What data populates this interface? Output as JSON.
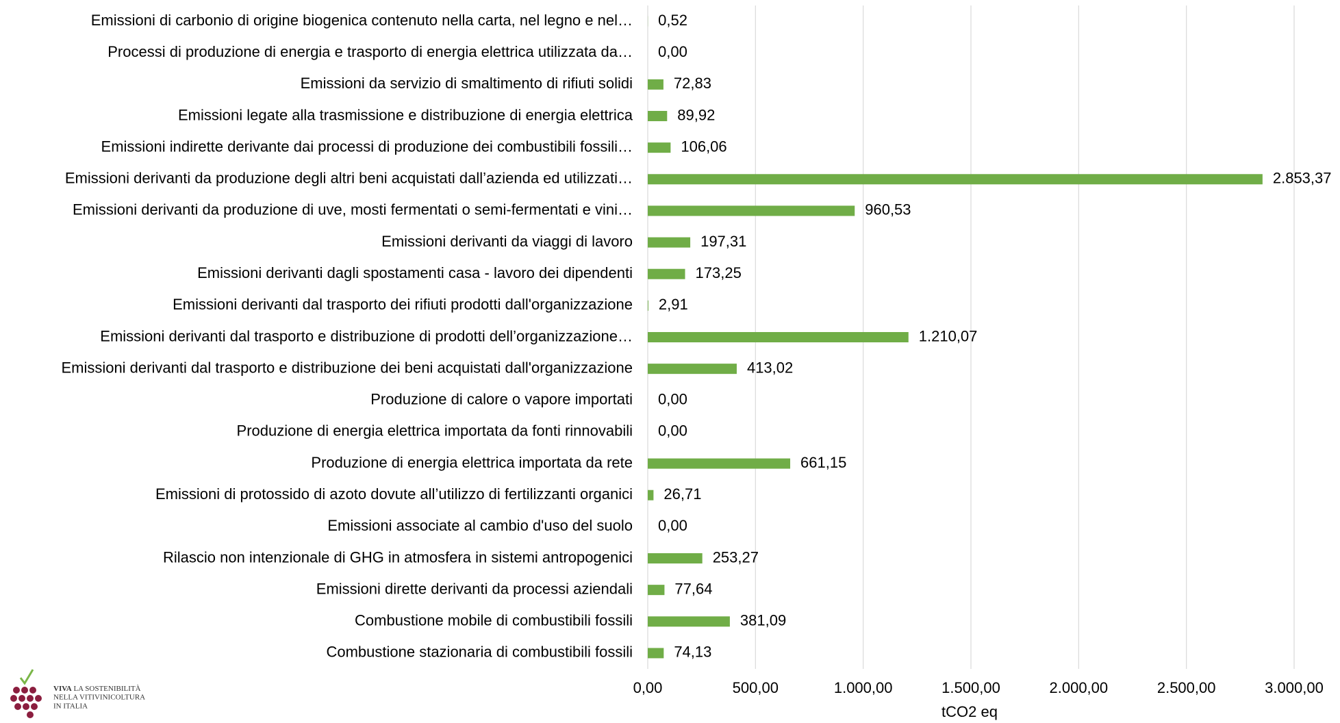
{
  "chart_data": {
    "type": "barh",
    "xlabel": "tCO2 eq",
    "color": "#70ad47",
    "grid": true,
    "categories": [
      "Emissioni di carbonio di origine biogenica contenuto nella carta, nel legno  e nel…",
      "Processi di produzione di energia e trasporto di energia elettrica utilizzata da…",
      "Emissioni da servizio di smaltimento di rifiuti solidi",
      "Emissioni legate alla trasmissione e distribuzione  di energia elettrica",
      "Emissioni indirette derivante dai processi di produzione dei combustibili fossili…",
      "Emissioni derivanti da produzione degli altri beni acquistati dall’azienda ed utilizzati…",
      "Emissioni derivanti da produzione di uve, mosti fermentati o semi-fermentati e vini…",
      "Emissioni derivanti da viaggi di lavoro",
      "Emissioni derivanti dagli spostamenti casa - lavoro dei dipendenti",
      "Emissioni derivanti dal trasporto dei rifiuti prodotti dall'organizzazione",
      "Emissioni derivanti dal trasporto e distribuzione di prodotti dell’organizzazione…",
      "Emissioni derivanti dal trasporto e distribuzione dei beni acquistati dall'organizzazione",
      "Produzione di calore o vapore importati",
      "Produzione di energia elettrica importata da fonti rinnovabili",
      "Produzione di energia elettrica importata da rete",
      "Emissioni di protossido di azoto dovute all’utilizzo di fertilizzanti organici",
      "Emissioni associate al cambio d'uso del suolo",
      "Rilascio non intenzionale di GHG in atmosfera in sistemi antropogenici",
      "Emissioni dirette derivanti da processi aziendali",
      "Combustione mobile di combustibili fossili",
      "Combustione stazionaria di combustibili fossili"
    ],
    "values": [
      0.52,
      0,
      72.83,
      89.92,
      106.06,
      2853.37,
      960.53,
      197.31,
      173.25,
      2.91,
      1210.07,
      413.02,
      0,
      0,
      661.15,
      26.71,
      0,
      253.27,
      77.64,
      381.09,
      74.13
    ],
    "value_labels": [
      "0,52",
      "0,00",
      "72,83",
      "89,92",
      "106,06",
      "2.853,37",
      "960,53",
      "197,31",
      "173,25",
      "2,91",
      "1.210,07",
      "413,02",
      "0,00",
      "0,00",
      "661,15",
      "26,71",
      "0,00",
      "253,27",
      "77,64",
      "381,09",
      "74,13"
    ],
    "xlim": [
      0,
      3000
    ],
    "xticks": [
      {
        "value": 0,
        "label": "0,00"
      },
      {
        "value": 500,
        "label": "500,00"
      },
      {
        "value": 1000,
        "label": "1.000,00"
      },
      {
        "value": 1500,
        "label": "1.500,00"
      },
      {
        "value": 2000,
        "label": "2.000,00"
      },
      {
        "value": 2500,
        "label": "2.500,00"
      },
      {
        "value": 3000,
        "label": "3.000,00"
      }
    ]
  },
  "logo": {
    "line1a": "VIVA",
    "line1b": "LA SOSTENIBILITÀ",
    "line2": "NELLA VITIVINICOLTURA",
    "line3": "IN ITALIA"
  }
}
